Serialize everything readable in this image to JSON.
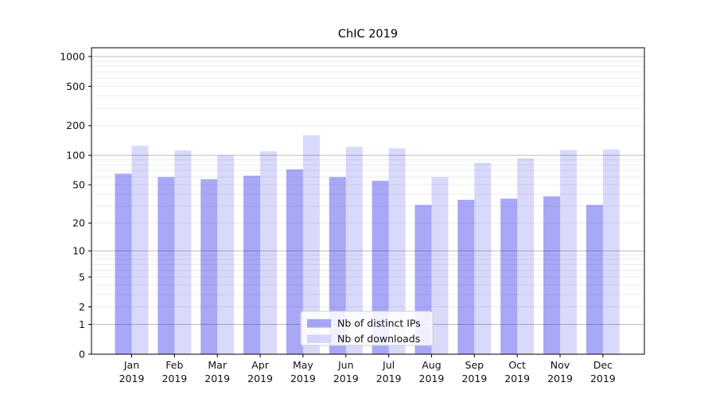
{
  "figure": {
    "background": "#ffffff"
  },
  "chart_data": {
    "type": "bar",
    "title": "ChIC 2019",
    "categories": [
      "Jan 2019",
      "Feb 2019",
      "Mar 2019",
      "Apr 2019",
      "May 2019",
      "Jun 2019",
      "Jul 2019",
      "Aug 2019",
      "Sep 2019",
      "Oct 2019",
      "Nov 2019",
      "Dec 2019"
    ],
    "series": [
      {
        "name": "Nb of distinct IPs",
        "color": "#0000e6",
        "alpha": 0.34,
        "display_color": "#a8a8f7",
        "values": [
          65,
          60,
          57,
          62,
          72,
          60,
          55,
          31,
          35,
          36,
          38,
          31
        ]
      },
      {
        "name": "Nb of downloads",
        "color": "#0000e6",
        "alpha": 0.15,
        "display_color": "#d9d9fb",
        "values": [
          125,
          112,
          100,
          110,
          160,
          122,
          118,
          60,
          84,
          93,
          113,
          115
        ]
      }
    ],
    "yscale": "log10(v+1)",
    "yticks": [
      1000,
      500,
      200,
      100,
      50,
      20,
      10,
      5,
      2,
      1,
      0
    ],
    "ylim": [
      0,
      1226
    ],
    "xlabel": "",
    "ylabel": "",
    "grid": true,
    "grid_major_color": "#bcbcbc",
    "grid_minor_color": "#ebebeb",
    "frame_color": "#000000",
    "legend": {
      "position": "inside-bottom-center",
      "background": "#ffffff",
      "border_color": "#cccccc",
      "items": [
        "Nb of distinct IPs",
        "Nb of downloads"
      ]
    }
  }
}
